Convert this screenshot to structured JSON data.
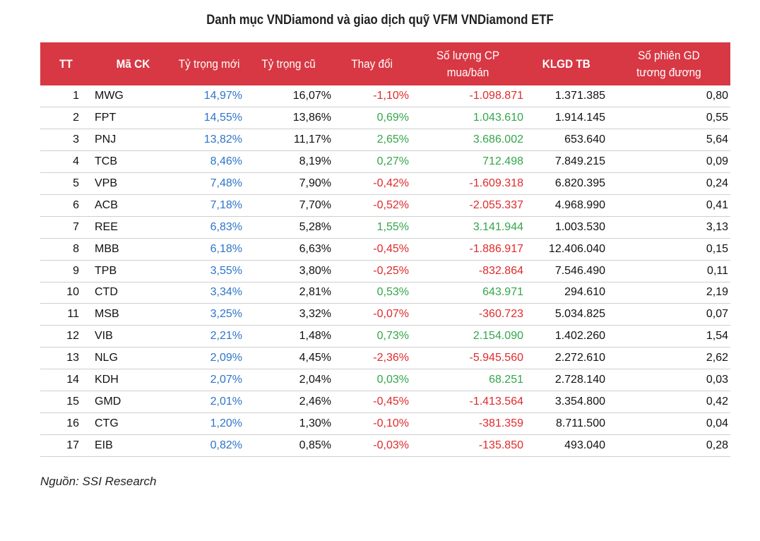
{
  "title": "Danh mục VNDiamond và giao dịch quỹ VFM VNDiamond ETF",
  "columns": {
    "tt": "TT",
    "code": "Mã CK",
    "new_weight": "Tỷ trọng mới",
    "old_weight": "Tỷ trọng cũ",
    "change": "Thay đổi",
    "shares_line1": "Số lượng CP",
    "shares_line2": "mua/bán",
    "avg_volume": "KLGD TB",
    "sessions_line1": "Số phiên GD",
    "sessions_line2": "tương đương"
  },
  "colors": {
    "header_bg": "#d73843",
    "new_weight": "#2e74c9",
    "positive": "#33a64a",
    "negative": "#e02a2a"
  },
  "rows": [
    {
      "tt": "1",
      "code": "MWG",
      "new_weight": "14,97%",
      "old_weight": "16,07%",
      "change": "-1,10%",
      "shares": "-1.098.871",
      "avg_volume": "1.371.385",
      "sessions": "0,80",
      "dir": "neg"
    },
    {
      "tt": "2",
      "code": "FPT",
      "new_weight": "14,55%",
      "old_weight": "13,86%",
      "change": "0,69%",
      "shares": "1.043.610",
      "avg_volume": "1.914.145",
      "sessions": "0,55",
      "dir": "pos"
    },
    {
      "tt": "3",
      "code": "PNJ",
      "new_weight": "13,82%",
      "old_weight": "11,17%",
      "change": "2,65%",
      "shares": "3.686.002",
      "avg_volume": "653.640",
      "sessions": "5,64",
      "dir": "pos"
    },
    {
      "tt": "4",
      "code": "TCB",
      "new_weight": "8,46%",
      "old_weight": "8,19%",
      "change": "0,27%",
      "shares": "712.498",
      "avg_volume": "7.849.215",
      "sessions": "0,09",
      "dir": "pos"
    },
    {
      "tt": "5",
      "code": "VPB",
      "new_weight": "7,48%",
      "old_weight": "7,90%",
      "change": "-0,42%",
      "shares": "-1.609.318",
      "avg_volume": "6.820.395",
      "sessions": "0,24",
      "dir": "neg"
    },
    {
      "tt": "6",
      "code": "ACB",
      "new_weight": "7,18%",
      "old_weight": "7,70%",
      "change": "-0,52%",
      "shares": "-2.055.337",
      "avg_volume": "4.968.990",
      "sessions": "0,41",
      "dir": "neg"
    },
    {
      "tt": "7",
      "code": "REE",
      "new_weight": "6,83%",
      "old_weight": "5,28%",
      "change": "1,55%",
      "shares": "3.141.944",
      "avg_volume": "1.003.530",
      "sessions": "3,13",
      "dir": "pos"
    },
    {
      "tt": "8",
      "code": "MBB",
      "new_weight": "6,18%",
      "old_weight": "6,63%",
      "change": "-0,45%",
      "shares": "-1.886.917",
      "avg_volume": "12.406.040",
      "sessions": "0,15",
      "dir": "neg"
    },
    {
      "tt": "9",
      "code": "TPB",
      "new_weight": "3,55%",
      "old_weight": "3,80%",
      "change": "-0,25%",
      "shares": "-832.864",
      "avg_volume": "7.546.490",
      "sessions": "0,11",
      "dir": "neg"
    },
    {
      "tt": "10",
      "code": "CTD",
      "new_weight": "3,34%",
      "old_weight": "2,81%",
      "change": "0,53%",
      "shares": "643.971",
      "avg_volume": "294.610",
      "sessions": "2,19",
      "dir": "pos"
    },
    {
      "tt": "11",
      "code": "MSB",
      "new_weight": "3,25%",
      "old_weight": "3,32%",
      "change": "-0,07%",
      "shares": "-360.723",
      "avg_volume": "5.034.825",
      "sessions": "0,07",
      "dir": "neg"
    },
    {
      "tt": "12",
      "code": "VIB",
      "new_weight": "2,21%",
      "old_weight": "1,48%",
      "change": "0,73%",
      "shares": "2.154.090",
      "avg_volume": "1.402.260",
      "sessions": "1,54",
      "dir": "pos"
    },
    {
      "tt": "13",
      "code": "NLG",
      "new_weight": "2,09%",
      "old_weight": "4,45%",
      "change": "-2,36%",
      "shares": "-5.945.560",
      "avg_volume": "2.272.610",
      "sessions": "2,62",
      "dir": "neg"
    },
    {
      "tt": "14",
      "code": "KDH",
      "new_weight": "2,07%",
      "old_weight": "2,04%",
      "change": "0,03%",
      "shares": "68.251",
      "avg_volume": "2.728.140",
      "sessions": "0,03",
      "dir": "pos"
    },
    {
      "tt": "15",
      "code": "GMD",
      "new_weight": "2,01%",
      "old_weight": "2,46%",
      "change": "-0,45%",
      "shares": "-1.413.564",
      "avg_volume": "3.354.800",
      "sessions": "0,42",
      "dir": "neg"
    },
    {
      "tt": "16",
      "code": "CTG",
      "new_weight": "1,20%",
      "old_weight": "1,30%",
      "change": "-0,10%",
      "shares": "-381.359",
      "avg_volume": "8.711.500",
      "sessions": "0,04",
      "dir": "neg"
    },
    {
      "tt": "17",
      "code": "EIB",
      "new_weight": "0,82%",
      "old_weight": "0,85%",
      "change": "-0,03%",
      "shares": "-135.850",
      "avg_volume": "493.040",
      "sessions": "0,28",
      "dir": "neg"
    }
  ],
  "source": "Nguồn: SSI Research"
}
